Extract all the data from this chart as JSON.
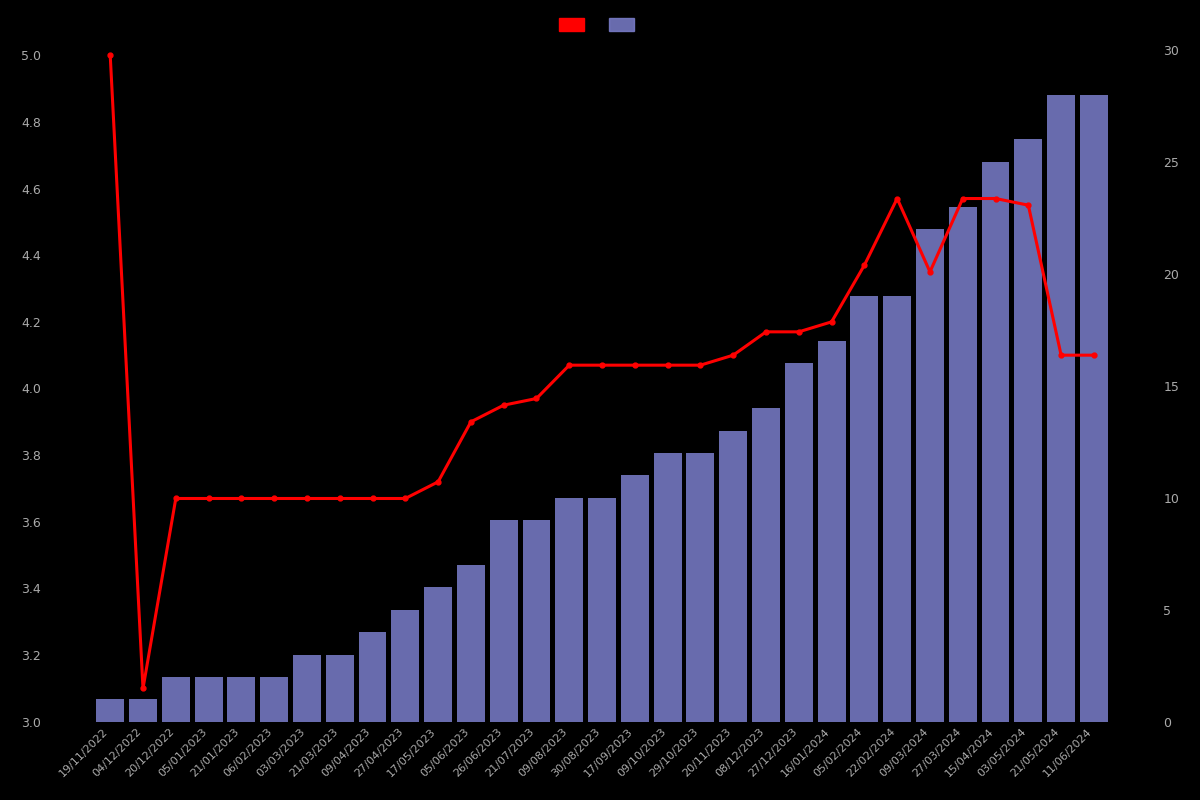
{
  "background_color": "#000000",
  "text_color": "#aaaaaa",
  "bar_color": "#7b7fcc",
  "line_color": "#ff0000",
  "left_ylim": [
    3.0,
    5.05
  ],
  "right_ylim": [
    0,
    30.5
  ],
  "left_yticks": [
    3.0,
    3.2,
    3.4,
    3.6,
    3.8,
    4.0,
    4.2,
    4.4,
    4.6,
    4.8,
    5.0
  ],
  "right_yticks": [
    0,
    5,
    10,
    15,
    20,
    25,
    30
  ],
  "dates": [
    "19/11/2022",
    "04/12/2022",
    "20/12/2022",
    "05/01/2023",
    "21/01/2023",
    "06/02/2023",
    "03/03/2023",
    "21/03/2023",
    "09/04/2023",
    "27/04/2023",
    "17/05/2023",
    "05/06/2023",
    "26/06/2023",
    "21/07/2023",
    "09/08/2023",
    "30/08/2023",
    "17/09/2023",
    "09/10/2023",
    "29/10/2023",
    "20/11/2023",
    "08/12/2023",
    "27/12/2023",
    "16/01/2024",
    "05/02/2024",
    "22/02/2024",
    "09/03/2024",
    "27/03/2024",
    "15/04/2024",
    "03/05/2024",
    "21/05/2024",
    "11/06/2024"
  ],
  "bar_values": [
    1,
    1,
    2,
    2,
    2,
    2,
    3,
    3,
    4,
    5,
    6,
    7,
    9,
    9,
    10,
    10,
    11,
    12,
    12,
    13,
    14,
    16,
    17,
    19,
    19,
    22,
    23,
    25,
    26,
    28,
    28
  ],
  "line_values": [
    5.0,
    3.1,
    3.67,
    3.67,
    3.67,
    3.67,
    3.67,
    3.67,
    3.67,
    3.67,
    3.72,
    3.9,
    3.95,
    3.97,
    4.07,
    4.07,
    4.07,
    4.07,
    4.07,
    4.1,
    4.17,
    4.17,
    4.2,
    4.37,
    4.57,
    4.35,
    4.57,
    4.57,
    4.55,
    4.1,
    4.1
  ]
}
